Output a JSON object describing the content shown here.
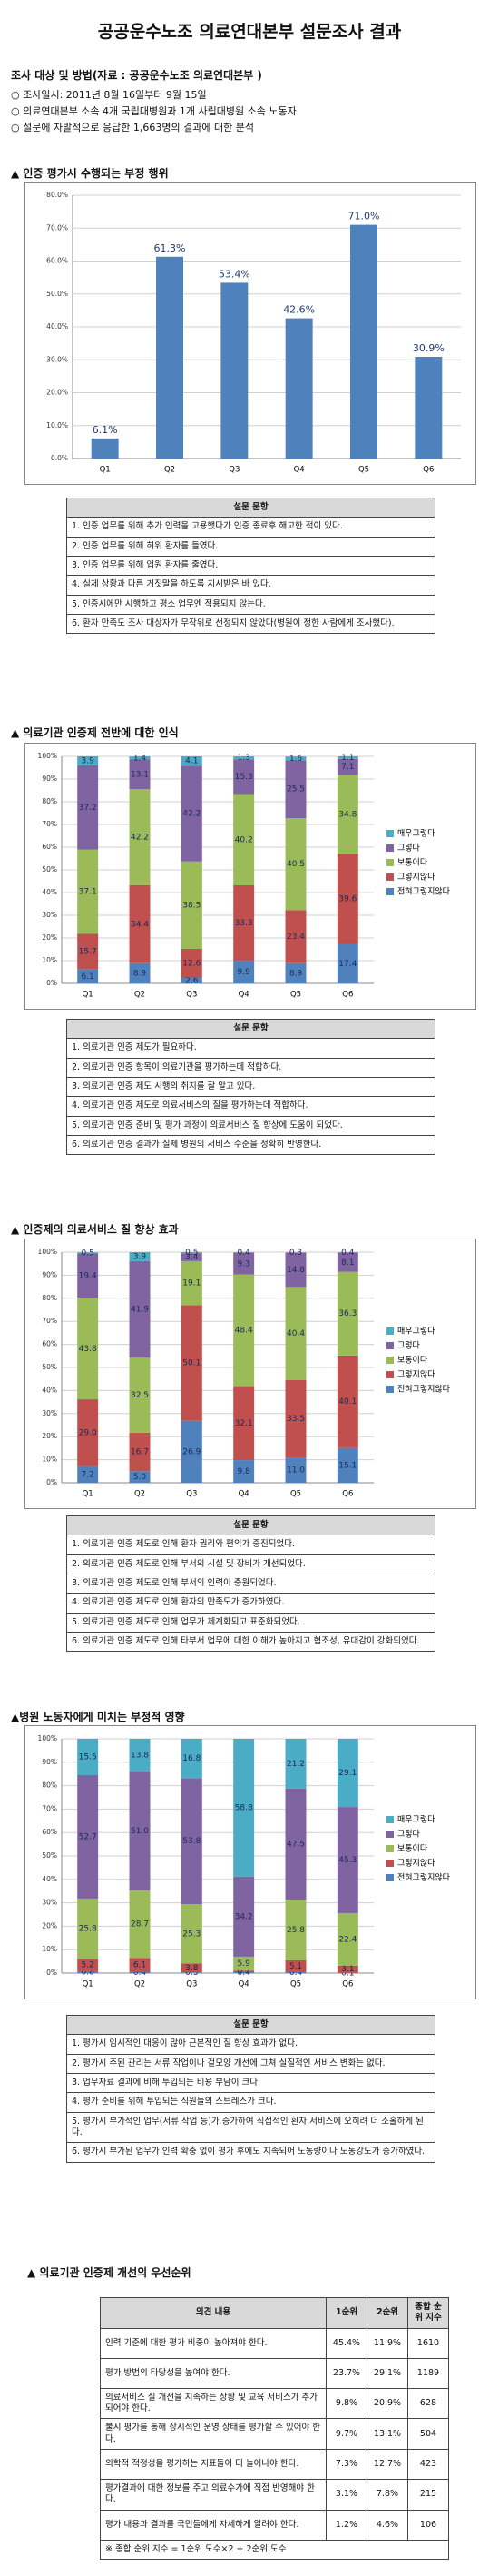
{
  "title": "공공운수노조 의료연대본부 설문조사 결과",
  "survey": {
    "heading": "조사 대상 및 방법(자료 : 공공운수노조 의료연대본부 )",
    "items": [
      "○ 조사일시: 2011년 8월 16일부터 9월 15일",
      "○ 의료연대본부 소속 4개 국립대병원과 1개 사립대병원 소속 노동자",
      "○ 설문에 자발적으로 응답한 1,663명의 결과에 대한 분석"
    ]
  },
  "sections": [
    {
      "heading": "▲ 인증 평가시 수행되는 부정 행위",
      "table_header": "설문 문항",
      "items": [
        "1. 인증 업무를 위해 추가 인력을 고용했다가 인증 종료후 해고한 적이 있다.",
        "2. 인증 업무를 위해 허위 환자를 들였다.",
        "3. 인증 업무를 위해 입원 환자를 줄였다.",
        "4. 실제 상황과 다른 거짓말을 하도록 지시받은 바 있다.",
        "5. 인증시에만 시행하고 평소 업무엔 적용되지 않는다.",
        "6. 환자 만족도 조사 대상자가 무작위로 선정되지 않았다(병원이 정한 사람에게 조사했다)."
      ]
    },
    {
      "heading": "▲ 의료기관 인증제 전반에 대한 인식",
      "table_header": "설문 문항",
      "items": [
        "1. 의료기관 인증 제도가 필요하다.",
        "2. 의료기관 인증 항목이 의료기관을 평가하는데 적합하다.",
        "3. 의료기관 인증 제도 시행의 취지를 잘 알고 있다.",
        "4. 의료기관 인증 제도로 의료서비스의 질을 평가하는데 적합하다.",
        "5. 의료기관 인증 준비 및 평가 과정이 의료서비스 질 향상에 도움이 되었다.",
        "6. 의료기관 인증 결과가 실제 병원의 서비스 수준을 정확히 반영한다."
      ]
    },
    {
      "heading": "▲ 인증제의 의료서비스 질 향상 효과",
      "table_header": "설문 문항",
      "items": [
        "1. 의료기관 인증 제도로 인해 환자 권리와 편의가 증진되었다.",
        "2. 의료기관 인증 제도로 인해 부서의 시설 및 장비가 개선되었다.",
        "3. 의료기관 인증 제도로 인해 부서의 인력이 충원되었다.",
        "4. 의료기관 인증 제도로 인해 환자의 만족도가 증가하였다.",
        "5. 의료기관 인증 제도로 인해 업무가 체계화되고 표준화되었다.",
        "6. 의료기관 인증 제도로 인해 타부서 업무에 대한 이해가 높아지고 협조성, 유대감이 강화되었다."
      ]
    },
    {
      "heading": "▲병원 노동자에게 미치는 부정적 영향",
      "table_header": "설문 문항",
      "items": [
        "1. 평가시 임시적인 대응이 많아 근본적인 질 향상 효과가 없다.",
        "2. 평가시 주된 관리는 서류 작업이나 겉모양 개선에 그쳐 실질적인 서비스 변화는 없다.",
        "3. 업무자료 결과에 비해 투입되는 비용 부담이 크다.",
        "4. 평가 준비를 위해 투입되는 직원들의 스트레스가 크다.",
        "5. 평가시 부가적인 업무(서류 작업 등)가 증가하여 직접적인 환자 서비스에 오히려 더 소홀하게 된다.",
        "6. 평가시 부가된 업무가 인력 확충 없이 평가 후에도 지속되어 노동량이나 노동강도가 증가하였다."
      ]
    }
  ],
  "priority": {
    "heading": "▲ 의료기관 인증제 개선의 우선순위",
    "columns": [
      "의견 내용",
      "1순위",
      "2순위",
      "종합 순위 지수"
    ],
    "rows": [
      [
        "인력 기준에 대한 평가 비중이 높아져야 한다.",
        "45.4%",
        "11.9%",
        "1610"
      ],
      [
        "평가 방법의 타당성을 높여야 한다.",
        "23.7%",
        "29.1%",
        "1189"
      ],
      [
        "의료서비스 질 개선을 지속하는 상황 및 교육 서비스가 추가되어야 한다.",
        "9.8%",
        "20.9%",
        "628"
      ],
      [
        "불시 평가를 통해 상시적인 운영 상태를 평가할 수 있어야 한다.",
        "9.7%",
        "13.1%",
        "504"
      ],
      [
        "의학적 적정성을 평가하는 지표들이 더 늘어나야 한다.",
        "7.3%",
        "12.7%",
        "423"
      ],
      [
        "평가결과에 대한 정보를 주고 의료수가에 직접 반영해야 한다.",
        "3.1%",
        "7.8%",
        "215"
      ],
      [
        "평가 내용과 결과를 국민들에게 자세하게 알려야 한다.",
        "1.2%",
        "4.6%",
        "106"
      ]
    ],
    "note": "※ 종합 순위 지수 = 1순위 도수×2 + 2순위 도수"
  },
  "chart_data": [
    {
      "type": "bar",
      "categories": [
        "Q1",
        "Q2",
        "Q3",
        "Q4",
        "Q5",
        "Q6"
      ],
      "values": [
        6.1,
        61.3,
        53.4,
        42.6,
        71.0,
        30.9
      ],
      "value_labels": [
        "6.1%",
        "61.3%",
        "53.4%",
        "42.6%",
        "71.0%",
        "30.9%"
      ],
      "color": "#4f81bd",
      "ylim": [
        0,
        80
      ],
      "yticks": [
        {
          "value": 0,
          "label": "0.0%"
        },
        {
          "value": 10,
          "label": "10.0%"
        },
        {
          "value": 20,
          "label": "20.0%"
        },
        {
          "value": 30,
          "label": "30.0%"
        },
        {
          "value": 40,
          "label": "40.0%"
        },
        {
          "value": 50,
          "label": "50.0%"
        },
        {
          "value": 60,
          "label": "60.0%"
        },
        {
          "value": 70,
          "label": "70.0%"
        },
        {
          "value": 80,
          "label": "80.0%"
        }
      ],
      "grid": true
    },
    {
      "type": "stacked_bar",
      "categories": [
        "Q1",
        "Q2",
        "Q3",
        "Q4",
        "Q5",
        "Q6"
      ],
      "series": [
        {
          "name": "전혀그렇지않다",
          "color": "#4f81bd",
          "values": [
            6.1,
            8.9,
            2.6,
            9.9,
            8.9,
            17.4
          ]
        },
        {
          "name": "그렇지않다",
          "color": "#c0504d",
          "values": [
            15.7,
            34.4,
            12.6,
            33.3,
            23.4,
            39.6
          ]
        },
        {
          "name": "보통이다",
          "color": "#9bbb59",
          "values": [
            37.1,
            42.2,
            38.5,
            40.2,
            40.5,
            34.8
          ]
        },
        {
          "name": "그렇다",
          "color": "#8064a2",
          "values": [
            37.2,
            13.1,
            42.2,
            15.3,
            25.5,
            7.1
          ]
        },
        {
          "name": "매우그렇다",
          "color": "#4bacc6",
          "values": [
            3.9,
            1.4,
            4.1,
            1.3,
            1.6,
            1.1
          ]
        }
      ],
      "ylim": [
        0,
        100
      ],
      "yticks": [
        {
          "value": 0,
          "label": "0%"
        },
        {
          "value": 10,
          "label": "10%"
        },
        {
          "value": 20,
          "label": "20%"
        },
        {
          "value": 30,
          "label": "30%"
        },
        {
          "value": 40,
          "label": "40%"
        },
        {
          "value": 50,
          "label": "50%"
        },
        {
          "value": 60,
          "label": "60%"
        },
        {
          "value": 70,
          "label": "70%"
        },
        {
          "value": 80,
          "label": "80%"
        },
        {
          "value": 90,
          "label": "90%"
        },
        {
          "value": 100,
          "label": "100%"
        }
      ],
      "grid": true,
      "legend": "right"
    },
    {
      "type": "stacked_bar",
      "categories": [
        "Q1",
        "Q2",
        "Q3",
        "Q4",
        "Q5",
        "Q6"
      ],
      "series": [
        {
          "name": "전혀그렇지않다",
          "color": "#4f81bd",
          "values": [
            7.2,
            5.0,
            26.9,
            9.8,
            11.0,
            15.1
          ],
          "value_labels": [
            "7.2",
            "5.0",
            "26.9",
            "9.8",
            "11.0",
            "15.1"
          ]
        },
        {
          "name": "그렇지않다",
          "color": "#c0504d",
          "values": [
            29.0,
            16.7,
            50.1,
            32.1,
            33.5,
            40.1
          ],
          "value_labels": [
            "29.0",
            "16.7",
            "50.1",
            "32.1",
            "33.5",
            "40.1"
          ]
        },
        {
          "name": "보통이다",
          "color": "#9bbb59",
          "values": [
            43.8,
            32.5,
            19.1,
            48.4,
            40.4,
            36.3
          ]
        },
        {
          "name": "그렇다",
          "color": "#8064a2",
          "values": [
            19.4,
            41.9,
            3.4,
            9.3,
            14.8,
            8.1
          ]
        },
        {
          "name": "매우그렇다",
          "color": "#4bacc6",
          "values": [
            0.5,
            3.9,
            0.5,
            0.4,
            0.3,
            0.4
          ]
        }
      ],
      "ylim": [
        0,
        100
      ],
      "yticks": [
        {
          "value": 0,
          "label": "0%"
        },
        {
          "value": 10,
          "label": "10%"
        },
        {
          "value": 20,
          "label": "20%"
        },
        {
          "value": 30,
          "label": "30%"
        },
        {
          "value": 40,
          "label": "40%"
        },
        {
          "value": 50,
          "label": "50%"
        },
        {
          "value": 60,
          "label": "60%"
        },
        {
          "value": 70,
          "label": "70%"
        },
        {
          "value": 80,
          "label": "80%"
        },
        {
          "value": 90,
          "label": "90%"
        },
        {
          "value": 100,
          "label": "100%"
        }
      ],
      "grid": true,
      "legend": "right"
    },
    {
      "type": "stacked_bar",
      "categories": [
        "Q1",
        "Q2",
        "Q3",
        "Q4",
        "Q5",
        "Q6"
      ],
      "series": [
        {
          "name": "전혀그렇지않다",
          "color": "#4f81bd",
          "values": [
            0.8,
            0.4,
            0.3,
            0.4,
            0.4,
            0.1
          ]
        },
        {
          "name": "그렇지않다",
          "color": "#c0504d",
          "values": [
            5.2,
            6.1,
            3.8,
            0.7,
            5.1,
            3.1
          ]
        },
        {
          "name": "보통이다",
          "color": "#9bbb59",
          "values": [
            25.8,
            28.7,
            25.3,
            5.9,
            25.8,
            22.4
          ]
        },
        {
          "name": "그렇다",
          "color": "#8064a2",
          "values": [
            52.7,
            51.0,
            53.8,
            34.2,
            47.5,
            45.3
          ],
          "value_labels": [
            "52.7",
            "51.0",
            "53.8",
            "34.2",
            "47.5",
            "45.3"
          ]
        },
        {
          "name": "매우그렇다",
          "color": "#4bacc6",
          "values": [
            15.5,
            13.8,
            16.8,
            58.8,
            21.2,
            29.1
          ]
        }
      ],
      "ylim": [
        0,
        100
      ],
      "yticks": [
        {
          "value": 0,
          "label": "0%"
        },
        {
          "value": 10,
          "label": "10%"
        },
        {
          "value": 20,
          "label": "20%"
        },
        {
          "value": 30,
          "label": "30%"
        },
        {
          "value": 40,
          "label": "40%"
        },
        {
          "value": 50,
          "label": "50%"
        },
        {
          "value": 60,
          "label": "60%"
        },
        {
          "value": 70,
          "label": "70%"
        },
        {
          "value": 80,
          "label": "80%"
        },
        {
          "value": 90,
          "label": "90%"
        },
        {
          "value": 100,
          "label": "100%"
        }
      ],
      "grid": true,
      "legend": "right"
    }
  ]
}
